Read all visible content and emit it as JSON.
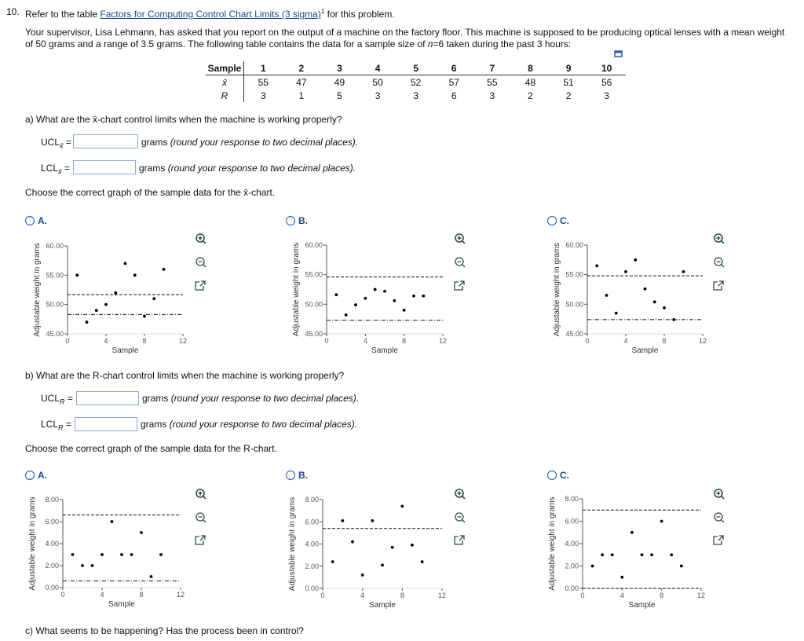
{
  "question": {
    "number": "10.",
    "prefix": "Refer to the table",
    "link": "Factors for Computing Control Chart Limits (3 sigma)",
    "footnote": "1",
    "suffix": "for this problem.",
    "intro": "Your supervisor, Lisa Lehmann, has asked that you report on the output of a machine on the factory floor. This machine is supposed to be producing optical lenses with a mean weight of 50 grams and a range of 3.5 grams. The following table contains the data for a sample size of ",
    "variable": "n",
    "intro_end": "=6 taken during the past 3 hours:"
  },
  "table": {
    "header": [
      "Sample",
      "1",
      "2",
      "3",
      "4",
      "5",
      "6",
      "7",
      "8",
      "9",
      "10"
    ],
    "rows": [
      [
        "x̄",
        55,
        47,
        49,
        50,
        52,
        57,
        55,
        48,
        51,
        56
      ],
      [
        "R",
        3,
        1,
        5,
        3,
        3,
        6,
        3,
        2,
        2,
        3
      ]
    ]
  },
  "part_a": {
    "question": "a) What are the x̄-chart control limits when the machine is working properly?",
    "ucl": {
      "label": "UCL",
      "subscript": "x̄",
      "sign": "=",
      "unit": "grams",
      "note": "(round your response to two decimal places)."
    },
    "lcl": {
      "label": "LCL",
      "subscript": "x̄",
      "sign": "=",
      "unit": "grams",
      "note": "(round your response to two decimal places)."
    },
    "choose": "Choose the correct graph of the sample data for the x̄-chart.",
    "options": [
      "A.",
      "B.",
      "C."
    ]
  },
  "part_b": {
    "question": "b) What are the R-chart control limits when the machine is working properly?",
    "ucl": {
      "label": "UCL",
      "subscript": "R",
      "sign": "=",
      "unit": "grams",
      "note": "(round your response to two decimal places)."
    },
    "lcl": {
      "label": "LCL",
      "subscript": "R",
      "sign": "=",
      "unit": "grams",
      "note": "(round your response to two decimal places)."
    },
    "choose": "Choose the correct graph of the sample data for the R-chart.",
    "options": [
      "A.",
      "B.",
      "C."
    ]
  },
  "part_c": {
    "question": "c) What seems to be happening? Has the process been in control?"
  },
  "chart_data": [
    {
      "type": "scatter",
      "xlabel": "Sample",
      "ylabel": "Adjustable weight in grams",
      "color": "#000000",
      "x": [
        1,
        2,
        3,
        4,
        5,
        6,
        7,
        8,
        9,
        10
      ],
      "values": [
        55,
        47,
        49,
        50,
        52,
        57,
        55,
        48,
        51,
        56
      ],
      "xlim": [
        0,
        12
      ],
      "xticks": [
        0,
        4,
        8,
        12
      ],
      "ylim": [
        45,
        60
      ],
      "yticks": [
        {
          "value": 45,
          "label": "45.00"
        },
        {
          "value": 50,
          "label": "50.00"
        },
        {
          "value": 55,
          "label": "55.00"
        },
        {
          "value": 60,
          "label": "60.00"
        }
      ],
      "control_limits": [
        {
          "value": 51.7,
          "style": "dashed"
        },
        {
          "value": 48.3,
          "style": "dash-dot"
        }
      ]
    },
    {
      "type": "scatter",
      "xlabel": "Sample",
      "ylabel": "Adjustable weight in grams",
      "color": "#000000",
      "x": [
        1,
        2,
        3,
        4,
        5,
        6,
        7,
        8,
        9,
        10
      ],
      "values": [
        51.6,
        48.2,
        49.9,
        51,
        52.5,
        52.2,
        50.6,
        49,
        51.4,
        51.4
      ],
      "xlim": [
        0,
        12
      ],
      "xticks": [
        0,
        4,
        8,
        12
      ],
      "ylim": [
        45,
        60
      ],
      "yticks": [
        {
          "value": 45,
          "label": "45.00"
        },
        {
          "value": 50,
          "label": "50.00"
        },
        {
          "value": 55,
          "label": "55.00"
        },
        {
          "value": 60,
          "label": "60.00"
        }
      ],
      "control_limits": [
        {
          "value": 54.6,
          "style": "dashed"
        },
        {
          "value": 47.3,
          "style": "dash-dot"
        }
      ]
    },
    {
      "type": "scatter",
      "xlabel": "Sample",
      "ylabel": "Adjustable weight in grams",
      "color": "#000000",
      "x": [
        1,
        2,
        3,
        4,
        5,
        6,
        7,
        8,
        9,
        10
      ],
      "values": [
        56.5,
        51.5,
        48.5,
        55.5,
        57.5,
        52.6,
        50.4,
        49.4,
        47.4,
        55.5
      ],
      "xlim": [
        0,
        12
      ],
      "xticks": [
        0,
        4,
        8,
        12
      ],
      "ylim": [
        45,
        60
      ],
      "yticks": [
        {
          "value": 45,
          "label": "45.00"
        },
        {
          "value": 50,
          "label": "50.00"
        },
        {
          "value": 55,
          "label": "55.00"
        },
        {
          "value": 60,
          "label": "60.00"
        }
      ],
      "control_limits": [
        {
          "value": 54.8,
          "style": "dashed"
        },
        {
          "value": 47.4,
          "style": "dash-dot"
        }
      ]
    },
    {
      "type": "scatter",
      "xlabel": "Sample",
      "ylabel": "Adjustable weight in grams",
      "color": "#000000",
      "x": [
        1,
        2,
        3,
        4,
        5,
        6,
        7,
        8,
        9,
        10
      ],
      "values": [
        3,
        2,
        2,
        3,
        6,
        3,
        3,
        5,
        1,
        3
      ],
      "xlim": [
        0,
        12
      ],
      "xticks": [
        0,
        4,
        8,
        12
      ],
      "ylim": [
        0,
        8
      ],
      "yticks": [
        {
          "value": 0,
          "label": "0.00"
        },
        {
          "value": 2,
          "label": "2.00"
        },
        {
          "value": 4,
          "label": "4.00"
        },
        {
          "value": 6,
          "label": "6.00"
        },
        {
          "value": 8,
          "label": "8.00"
        }
      ],
      "control_limits": [
        {
          "value": 6.6,
          "style": "dashed"
        },
        {
          "value": 0.6,
          "style": "dash-dot"
        }
      ]
    },
    {
      "type": "scatter",
      "xlabel": "Sample",
      "ylabel": "Adjustable weight in grams",
      "color": "#000000",
      "x": [
        1,
        2,
        3,
        4,
        5,
        6,
        7,
        8,
        9,
        10
      ],
      "values": [
        2.4,
        6.1,
        4.2,
        1.2,
        6.1,
        2.1,
        3.7,
        7.4,
        3.9,
        2.4
      ],
      "xlim": [
        0,
        12
      ],
      "xticks": [
        0,
        4,
        8,
        12
      ],
      "ylim": [
        0,
        8
      ],
      "yticks": [
        {
          "value": 0,
          "label": "0.00"
        },
        {
          "value": 2,
          "label": "2.00"
        },
        {
          "value": 4,
          "label": "4.00"
        },
        {
          "value": 6,
          "label": "6.00"
        },
        {
          "value": 8,
          "label": "8.00"
        }
      ],
      "control_limits": [
        {
          "value": 5.4,
          "style": "dashed"
        }
      ]
    },
    {
      "type": "scatter",
      "xlabel": "Sample",
      "ylabel": "Adjustable weight in grams",
      "color": "#000000",
      "x": [
        1,
        2,
        3,
        4,
        5,
        6,
        7,
        8,
        9,
        10
      ],
      "values": [
        2,
        3,
        3,
        1,
        5,
        3,
        3,
        6,
        3,
        2
      ],
      "xlim": [
        0,
        12
      ],
      "xticks": [
        0,
        4,
        8,
        12
      ],
      "ylim": [
        0,
        8
      ],
      "yticks": [
        {
          "value": 0,
          "label": "0.00"
        },
        {
          "value": 2,
          "label": "2.00"
        },
        {
          "value": 4,
          "label": "4.00"
        },
        {
          "value": 6,
          "label": "6.00"
        },
        {
          "value": 8,
          "label": "8.00"
        }
      ],
      "control_limits": [
        {
          "value": 7.0,
          "style": "dashed"
        },
        {
          "value": 0,
          "style": "dashed"
        }
      ]
    }
  ]
}
